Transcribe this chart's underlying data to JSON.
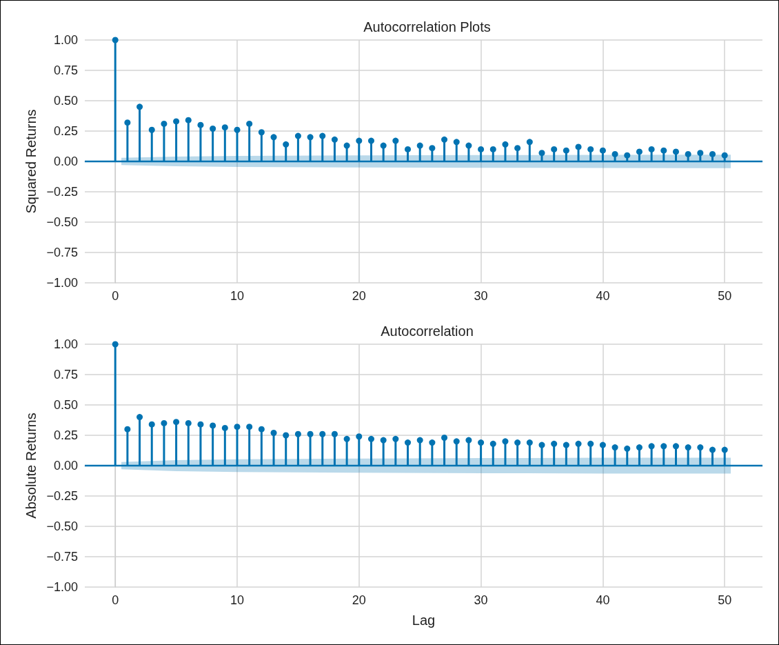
{
  "chart_data": [
    {
      "type": "lollipop",
      "title": "Autocorrelation Plots",
      "ylabel": "Squared Returns",
      "grid": true,
      "xlim": [
        -2.5,
        53.1
      ],
      "xticks": [
        0,
        10,
        20,
        30,
        40,
        50
      ],
      "ylim": [
        -1,
        1
      ],
      "yticks": [
        {
          "value": -1,
          "label": "−1.00"
        },
        {
          "value": -0.75,
          "label": "−0.75"
        },
        {
          "value": -0.5,
          "label": "−0.50"
        },
        {
          "value": -0.25,
          "label": "−0.25"
        },
        {
          "value": 0,
          "label": "0.00"
        },
        {
          "value": 0.25,
          "label": "0.25"
        },
        {
          "value": 0.5,
          "label": "0.50"
        },
        {
          "value": 0.75,
          "label": "0.75"
        },
        {
          "value": 1,
          "label": "1.00"
        }
      ],
      "series": [
        {
          "type": "line",
          "color": "#0173b2",
          "marker": "none",
          "x": [
            -2.5,
            0.5,
            5,
            10,
            20,
            30,
            40,
            50.5,
            53.1
          ],
          "values": [
            0,
            0,
            0,
            0,
            0,
            0,
            0,
            0,
            0
          ],
          "lower": [
            null,
            -0.03,
            -0.04,
            -0.045,
            -0.05,
            -0.052,
            -0.054,
            -0.055,
            null
          ],
          "upper": [
            null,
            0.03,
            0.04,
            0.045,
            0.05,
            0.052,
            0.054,
            0.055,
            null
          ]
        },
        {
          "type": "lollipop",
          "color": "#0173b2",
          "x": [
            0,
            1,
            2,
            3,
            4,
            5,
            6,
            7,
            8,
            9,
            10,
            11,
            12,
            13,
            14,
            15,
            16,
            17,
            18,
            19,
            20,
            21,
            22,
            23,
            24,
            25,
            26,
            27,
            28,
            29,
            30,
            31,
            32,
            33,
            34,
            35,
            36,
            37,
            38,
            39,
            40,
            41,
            42,
            43,
            44,
            45,
            46,
            47,
            48,
            49,
            50
          ],
          "marker": "circle",
          "values": [
            1,
            0.32,
            0.45,
            0.26,
            0.31,
            0.33,
            0.34,
            0.3,
            0.27,
            0.28,
            0.26,
            0.31,
            0.24,
            0.2,
            0.14,
            0.21,
            0.2,
            0.21,
            0.18,
            0.13,
            0.17,
            0.17,
            0.13,
            0.17,
            0.1,
            0.13,
            0.11,
            0.18,
            0.16,
            0.13,
            0.1,
            0.1,
            0.14,
            0.11,
            0.16,
            0.07,
            0.1,
            0.09,
            0.12,
            0.1,
            0.09,
            0.06,
            0.05,
            0.08,
            0.1,
            0.09,
            0.08,
            0.06,
            0.07,
            0.06,
            0.05
          ]
        }
      ]
    },
    {
      "type": "lollipop",
      "title": "Autocorrelation",
      "xlabel": "Lag",
      "ylabel": "Absolute Returns",
      "grid": true,
      "xlim": [
        -2.5,
        53.1
      ],
      "xticks": [
        0,
        10,
        20,
        30,
        40,
        50
      ],
      "ylim": [
        -1,
        1
      ],
      "yticks": [
        {
          "value": -1,
          "label": "−1.00"
        },
        {
          "value": -0.75,
          "label": "−0.75"
        },
        {
          "value": -0.5,
          "label": "−0.50"
        },
        {
          "value": -0.25,
          "label": "−0.25"
        },
        {
          "value": 0,
          "label": "0.00"
        },
        {
          "value": 0.25,
          "label": "0.25"
        },
        {
          "value": 0.5,
          "label": "0.50"
        },
        {
          "value": 0.75,
          "label": "0.75"
        },
        {
          "value": 1,
          "label": "1.00"
        }
      ],
      "series": [
        {
          "type": "line",
          "color": "#0173b2",
          "marker": "none",
          "x": [
            -2.5,
            0.5,
            5,
            10,
            20,
            30,
            40,
            50.5,
            53.1
          ],
          "values": [
            0,
            0,
            0,
            0,
            0,
            0,
            0,
            0,
            0
          ],
          "lower": [
            null,
            -0.03,
            -0.045,
            -0.052,
            -0.058,
            -0.062,
            -0.065,
            -0.066,
            null
          ],
          "upper": [
            null,
            0.03,
            0.045,
            0.052,
            0.058,
            0.062,
            0.065,
            0.066,
            null
          ]
        },
        {
          "type": "lollipop",
          "color": "#0173b2",
          "x": [
            0,
            1,
            2,
            3,
            4,
            5,
            6,
            7,
            8,
            9,
            10,
            11,
            12,
            13,
            14,
            15,
            16,
            17,
            18,
            19,
            20,
            21,
            22,
            23,
            24,
            25,
            26,
            27,
            28,
            29,
            30,
            31,
            32,
            33,
            34,
            35,
            36,
            37,
            38,
            39,
            40,
            41,
            42,
            43,
            44,
            45,
            46,
            47,
            48,
            49,
            50
          ],
          "marker": "circle",
          "values": [
            1,
            0.3,
            0.4,
            0.34,
            0.35,
            0.36,
            0.35,
            0.34,
            0.33,
            0.31,
            0.32,
            0.32,
            0.3,
            0.27,
            0.25,
            0.26,
            0.26,
            0.26,
            0.26,
            0.22,
            0.24,
            0.22,
            0.21,
            0.22,
            0.19,
            0.21,
            0.19,
            0.23,
            0.2,
            0.21,
            0.19,
            0.18,
            0.2,
            0.19,
            0.19,
            0.17,
            0.18,
            0.17,
            0.18,
            0.18,
            0.17,
            0.15,
            0.14,
            0.15,
            0.16,
            0.16,
            0.16,
            0.15,
            0.15,
            0.13,
            0.13
          ]
        }
      ]
    }
  ]
}
